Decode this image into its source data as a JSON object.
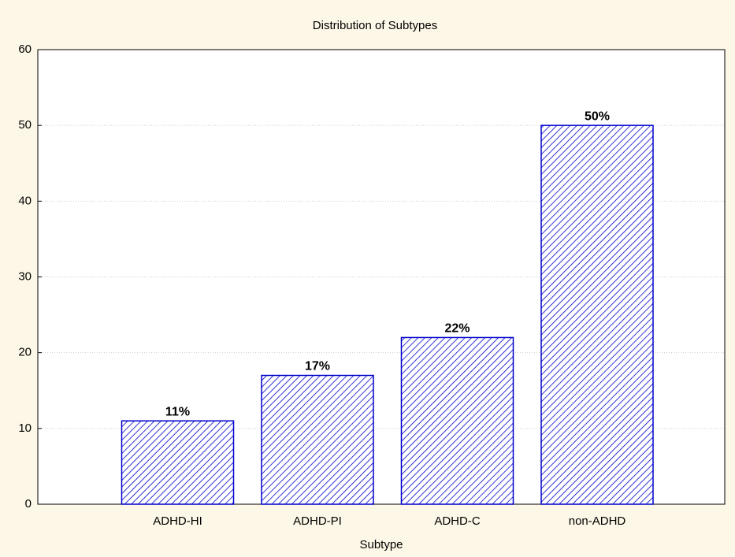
{
  "chart_data": {
    "type": "bar",
    "title": "Distribution of Subtypes",
    "x_label": "Subtype",
    "categories": [
      "ADHD-HI",
      "ADHD-PI",
      "ADHD-C",
      "non-ADHD"
    ],
    "values": [
      11,
      17,
      22,
      50
    ],
    "value_labels": [
      "11%",
      "17%",
      "22%",
      "50%"
    ],
    "color": "#0000cc",
    "ylim": [
      0,
      60
    ],
    "yticks": [
      0,
      10,
      20,
      30,
      40,
      50,
      60
    ],
    "grid": true
  }
}
